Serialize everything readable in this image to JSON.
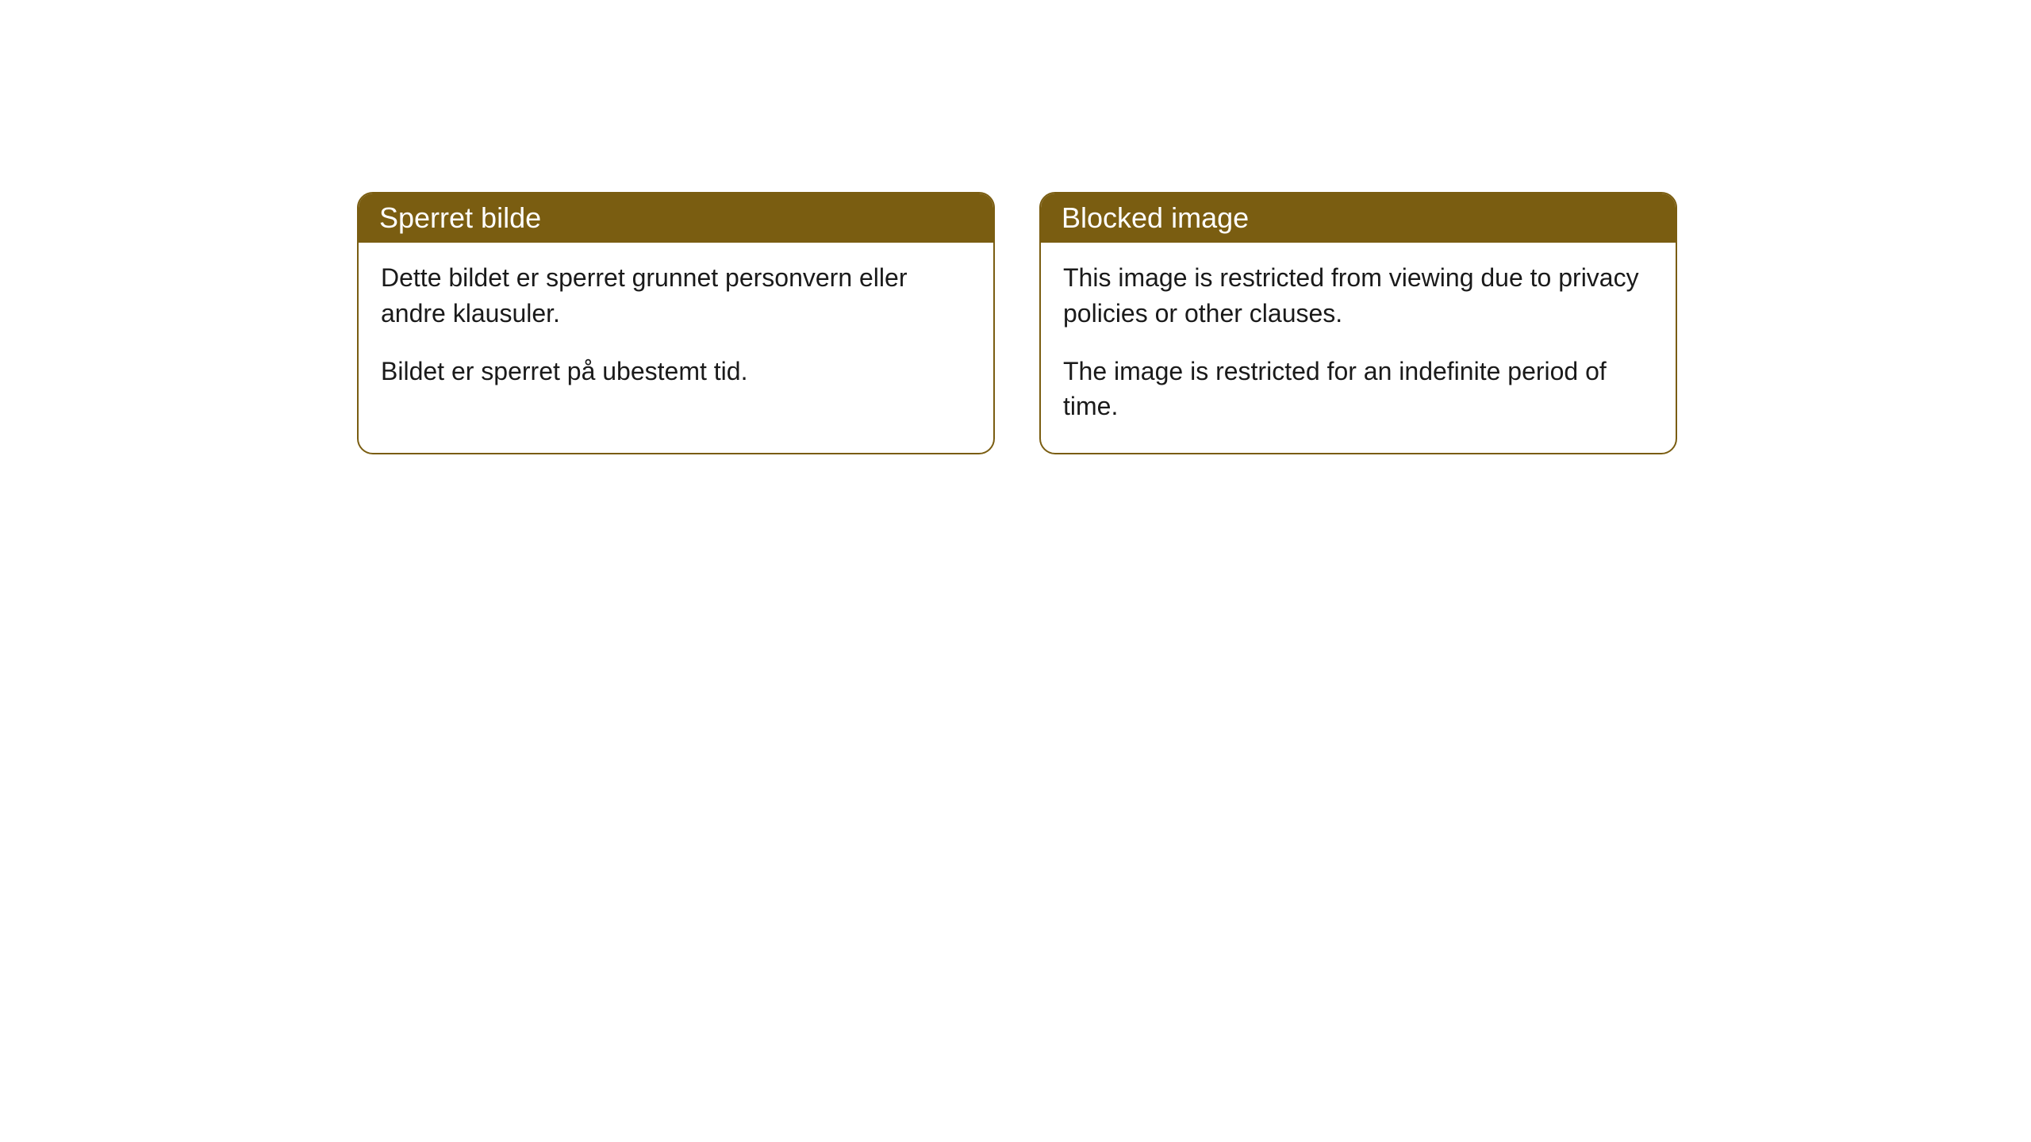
{
  "cards": [
    {
      "title": "Sperret bilde",
      "paragraph1": "Dette bildet er sperret grunnet personvern eller andre klausuler.",
      "paragraph2": "Bildet er sperret på ubestemt tid."
    },
    {
      "title": "Blocked image",
      "paragraph1": "This image is restricted from viewing due to privacy policies or other clauses.",
      "paragraph2": "The image is restricted for an indefinite period of time."
    }
  ],
  "styling": {
    "header_background": "#7a5d11",
    "header_text_color": "#ffffff",
    "border_color": "#7a5d11",
    "body_background": "#ffffff",
    "body_text_color": "#1a1a1a",
    "border_radius": 20,
    "title_fontsize": 36,
    "body_fontsize": 32
  }
}
